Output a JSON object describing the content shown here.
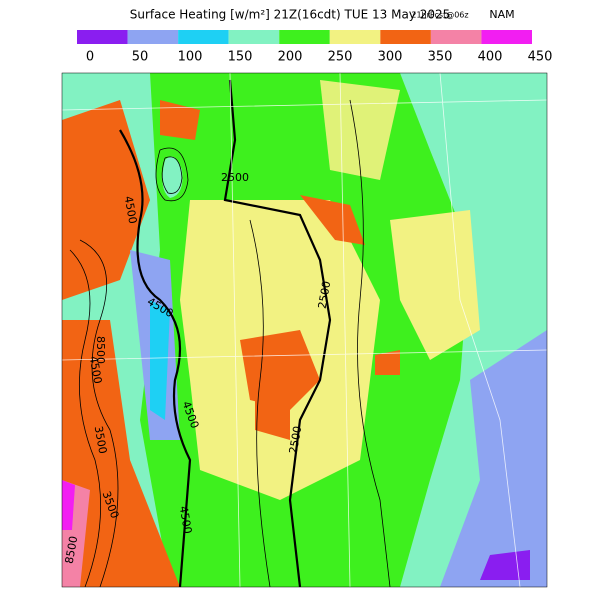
{
  "header": {
    "title": "Surface Heating [w/m²] 21Z(16cdt) TUE 13 May 2025",
    "forecast": "21hrFcst@06z",
    "model": "NAM"
  },
  "legend": {
    "ticks": [
      0,
      50,
      100,
      150,
      200,
      250,
      300,
      350,
      400,
      450
    ],
    "colors": [
      "#8a1ef0",
      "#8ea4f2",
      "#1ed0f4",
      "#82f2c2",
      "#3ef01e",
      "#f2f282",
      "#f26414",
      "#f482a6",
      "#f21ef2"
    ]
  },
  "contour_labels": [
    "2500",
    "4500",
    "4500",
    "2500",
    "4500",
    "2500",
    "4500",
    "3500",
    "3500",
    "4500",
    "8500",
    "8500"
  ]
}
